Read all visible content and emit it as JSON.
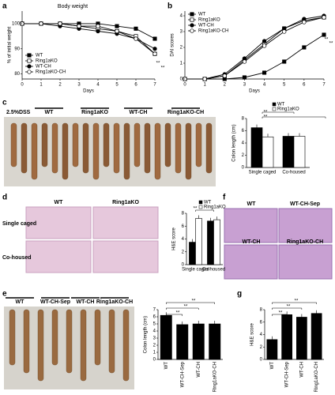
{
  "panel_labels": [
    "a",
    "b",
    "c",
    "d",
    "e",
    "f",
    "g"
  ],
  "photo_panels": [
    {
      "labels": [
        "2.5%DSS",
        "WT",
        "Ring1aKO",
        "WT-CH",
        "Ring1aKO-CH"
      ]
    },
    {
      "labels": [
        "WT",
        "Ring1aKO",
        "Single caged",
        "Co-housed"
      ]
    },
    {
      "labels": [
        "WT",
        "WT-CH-Sep",
        "WT-CH",
        "Ring1aKO-CH"
      ]
    },
    {
      "labels": [
        "WT",
        "WT-CH-Sep",
        "WT-CH",
        "Ring1aKO-CH"
      ]
    }
  ],
  "chart_data": [
    {
      "type": "line",
      "title": "Body weight",
      "y_label": "% of initial weight",
      "x_label": "Days",
      "x": [
        0,
        1,
        2,
        3,
        4,
        5,
        6,
        7
      ],
      "xlim": [
        0,
        7
      ],
      "xticks": [
        0,
        1,
        2,
        3,
        4,
        5,
        6,
        7
      ],
      "ylim": [
        78,
        105
      ],
      "yticks": [
        80,
        90,
        100
      ],
      "series": [
        {
          "name": "WT",
          "color": "#000",
          "marker": "square",
          "values": [
            100,
            100,
            100,
            100,
            100,
            99,
            98,
            94
          ]
        },
        {
          "name": "Ring1aKO",
          "color": "#000",
          "marker": "square-open",
          "values": [
            100,
            100,
            100,
            99,
            98,
            97,
            95,
            88
          ]
        },
        {
          "name": "WT-CH",
          "color": "#000",
          "marker": "circle",
          "values": [
            100,
            100,
            99,
            98,
            97,
            96,
            94,
            90
          ]
        },
        {
          "name": "Ring1aKO-CH",
          "color": "#000",
          "marker": "circle-open",
          "values": [
            100,
            100,
            100,
            99,
            99,
            97,
            94,
            88
          ]
        }
      ],
      "annotations": [
        "**",
        "**"
      ]
    },
    {
      "type": "line",
      "y_label": "DAI scores",
      "x_label": "Days",
      "x": [
        0,
        1,
        2,
        3,
        4,
        5,
        6,
        7
      ],
      "xlim": [
        0,
        7
      ],
      "xticks": [
        0,
        1,
        2,
        3,
        4,
        5,
        6,
        7
      ],
      "ylim": [
        0,
        4.3
      ],
      "yticks": [
        0,
        1,
        2,
        3,
        4
      ],
      "series": [
        {
          "name": "WT",
          "color": "#000",
          "marker": "square",
          "values": [
            0,
            0,
            0,
            0.1,
            0.4,
            1.1,
            2,
            2.8
          ]
        },
        {
          "name": "Ring1aKO",
          "color": "#000",
          "marker": "square-open",
          "values": [
            0,
            0,
            0.2,
            1.2,
            2.2,
            3.2,
            3.7,
            3.9
          ]
        },
        {
          "name": "WT-CH",
          "color": "#000",
          "marker": "circle",
          "values": [
            0,
            0,
            0.3,
            1.3,
            2.4,
            3.2,
            3.8,
            4
          ]
        },
        {
          "name": "Ring1aKO-CH",
          "color": "#000",
          "marker": "circle-open",
          "values": [
            0,
            0,
            0.2,
            1.1,
            2.1,
            3,
            3.6,
            3.9
          ]
        }
      ],
      "annotations": [
        "**",
        "**"
      ]
    },
    {
      "type": "bar",
      "y_label": "Colon length (cm)",
      "categories": [
        "Single caged",
        "Co-housed"
      ],
      "ylim": [
        0,
        8
      ],
      "yticks": [
        0,
        2,
        4,
        6,
        8
      ],
      "series": [
        {
          "name": "WT",
          "color": "#000",
          "values": [
            6.5,
            5.1
          ]
        },
        {
          "name": "Ring1aKO",
          "color": "#fff",
          "values": [
            5,
            5.1
          ]
        }
      ],
      "annotations": [
        "**",
        "**"
      ]
    },
    {
      "type": "bar",
      "y_label": "H&E score",
      "categories": [
        "Single caged",
        "Co-housed"
      ],
      "ylim": [
        0,
        8
      ],
      "yticks": [
        0,
        2,
        4,
        6,
        8
      ],
      "series": [
        {
          "name": "WT",
          "color": "#000",
          "values": [
            3.5,
            6.8
          ]
        },
        {
          "name": "Ring1aKO",
          "color": "#fff",
          "values": [
            7.2,
            7
          ]
        }
      ],
      "annotations": [
        "**"
      ]
    },
    {
      "type": "bar",
      "y_label": "Colon length (cm)",
      "categories": [
        "WT",
        "WT-CH-Sep",
        "WT-CH",
        "Ring1aKO-CH"
      ],
      "ylim": [
        0,
        7
      ],
      "yticks": [
        0,
        1,
        2,
        3,
        4,
        5,
        6,
        7
      ],
      "series": [
        {
          "color": "#000",
          "values": [
            6.2,
            4.9,
            5,
            5
          ]
        }
      ],
      "annotations": [
        "**",
        "**",
        "**"
      ]
    },
    {
      "type": "bar",
      "y_label": "H&E score",
      "categories": [
        "WT",
        "WT-CH-Sep",
        "WT-CH",
        "Ring1aKO-CH"
      ],
      "ylim": [
        0,
        8
      ],
      "yticks": [
        0,
        2,
        4,
        6,
        8
      ],
      "series": [
        {
          "color": "#000",
          "values": [
            3.2,
            7.2,
            6.8,
            7.4
          ]
        }
      ],
      "annotations": [
        "**",
        "**",
        "**"
      ]
    }
  ]
}
